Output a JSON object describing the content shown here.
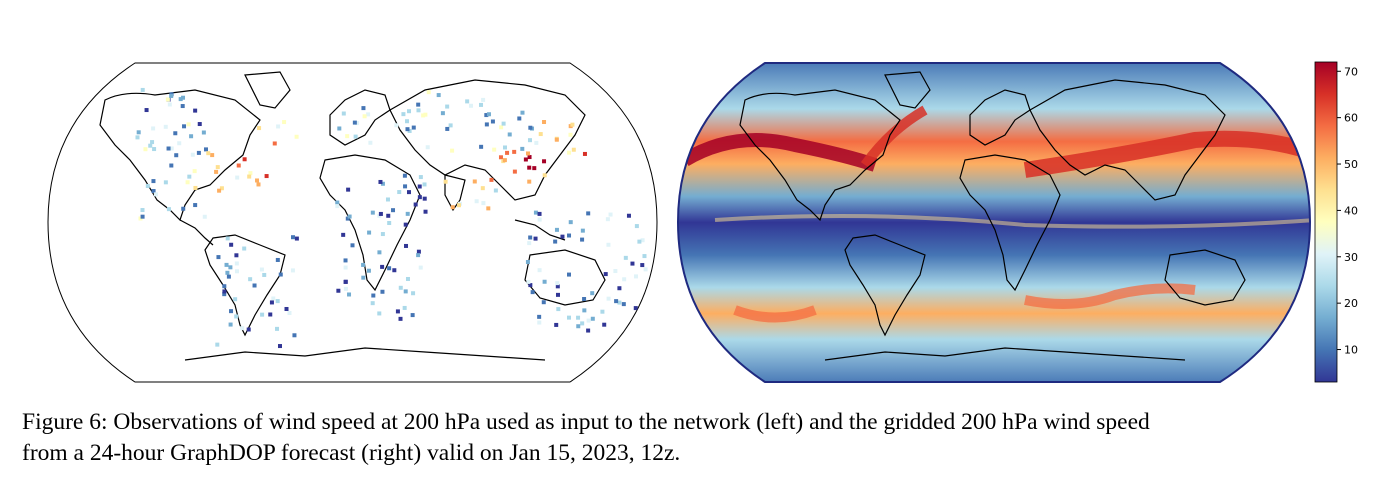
{
  "figure": {
    "caption_line1": "Figure 6: Observations of wind speed at 200 hPa used as input to the network (left) and the gridded 200 hPa wind speed",
    "caption_line2": "from a 24-hour GraphDOP forecast (right) valid on Jan 15, 2023, 12z."
  },
  "colorbar": {
    "ticks": [
      "70",
      "60",
      "50",
      "40",
      "30",
      "20",
      "10"
    ],
    "tick_values": [
      70,
      60,
      50,
      40,
      30,
      20,
      10
    ],
    "range": [
      3,
      72
    ],
    "colormap_stops": [
      "#313695",
      "#4575b4",
      "#74add1",
      "#abd9e9",
      "#e0f3f8",
      "#ffffbf",
      "#fee090",
      "#fdae61",
      "#f46d43",
      "#d73027",
      "#a50026"
    ]
  },
  "maps": {
    "left": {
      "type": "station-observations"
    },
    "right": {
      "type": "gridded-forecast"
    }
  }
}
